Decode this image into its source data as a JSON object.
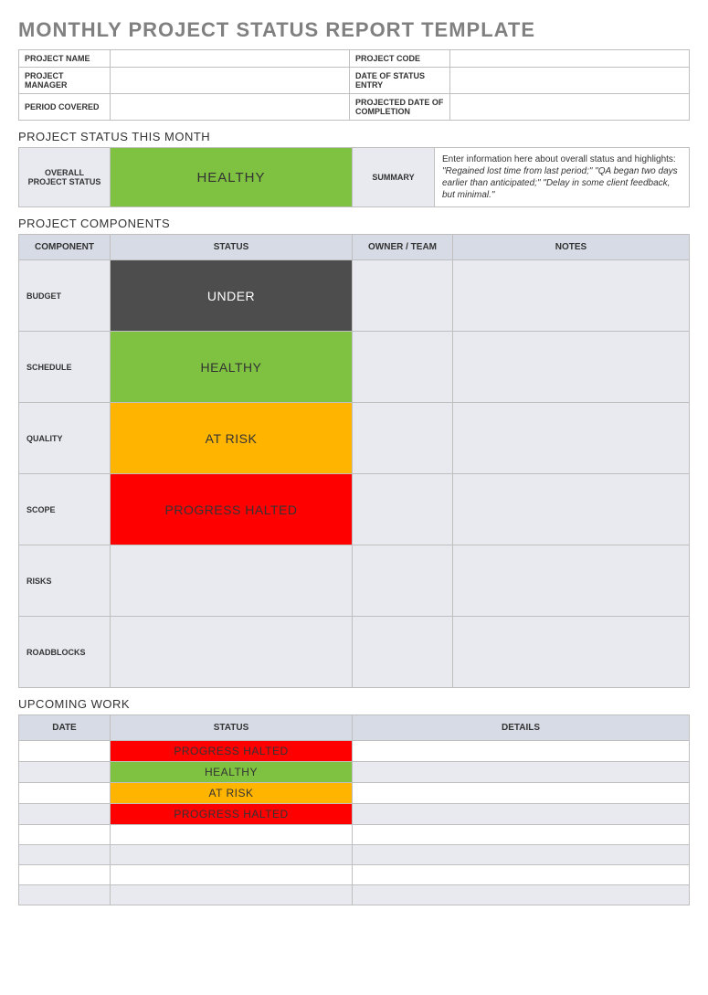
{
  "title": "MONTHLY PROJECT STATUS REPORT TEMPLATE",
  "colors": {
    "healthy": {
      "bg": "#7fc241",
      "fg": "#333333"
    },
    "under": {
      "bg": "#4d4d4d",
      "fg": "#ffffff"
    },
    "atrisk": {
      "bg": "#ffb400",
      "fg": "#333333"
    },
    "halted": {
      "bg": "#ff0000",
      "fg": "#333333"
    },
    "blank": {
      "bg": "#e8eaf0",
      "fg": "#333333"
    }
  },
  "info": {
    "labels": {
      "project_name": "PROJECT NAME",
      "project_code": "PROJECT CODE",
      "project_manager": "PROJECT MANAGER",
      "date_of_entry": "DATE OF STATUS ENTRY",
      "period_covered": "PERIOD COVERED",
      "projected_completion": "PROJECTED DATE OF COMPLETION"
    },
    "values": {
      "project_name": "",
      "project_code": "",
      "project_manager": "",
      "date_of_entry": "",
      "period_covered": "",
      "projected_completion": ""
    }
  },
  "status_month": {
    "heading": "PROJECT STATUS THIS MONTH",
    "overall_label": "OVERALL PROJECT STATUS",
    "overall_status_text": "HEALTHY",
    "overall_status_color": "healthy",
    "summary_label": "SUMMARY",
    "summary_intro": "Enter information here about overall status and highlights: ",
    "summary_example": "\"Regained lost time from last period;\" \"QA began two days earlier than anticipated;\" \"Delay in some client feedback, but minimal.\""
  },
  "components": {
    "heading": "PROJECT COMPONENTS",
    "headers": {
      "component": "COMPONENT",
      "status": "STATUS",
      "owner": "OWNER / TEAM",
      "notes": "NOTES"
    },
    "rows": [
      {
        "label": "BUDGET",
        "status_text": "UNDER",
        "status_color": "under",
        "owner": "",
        "notes": ""
      },
      {
        "label": "SCHEDULE",
        "status_text": "HEALTHY",
        "status_color": "healthy",
        "owner": "",
        "notes": ""
      },
      {
        "label": "QUALITY",
        "status_text": "AT RISK",
        "status_color": "atrisk",
        "owner": "",
        "notes": ""
      },
      {
        "label": "SCOPE",
        "status_text": "PROGRESS HALTED",
        "status_color": "halted",
        "owner": "",
        "notes": ""
      },
      {
        "label": "RISKS",
        "status_text": "",
        "status_color": "blank",
        "owner": "",
        "notes": ""
      },
      {
        "label": "ROADBLOCKS",
        "status_text": "",
        "status_color": "blank",
        "owner": "",
        "notes": ""
      }
    ]
  },
  "upcoming": {
    "heading": "UPCOMING WORK",
    "headers": {
      "date": "DATE",
      "status": "STATUS",
      "details": "DETAILS"
    },
    "rows": [
      {
        "date": "",
        "status_text": "PROGRESS HALTED",
        "status_color": "halted",
        "details": "",
        "alt": true
      },
      {
        "date": "",
        "status_text": "HEALTHY",
        "status_color": "healthy",
        "details": "",
        "alt": false
      },
      {
        "date": "",
        "status_text": "AT RISK",
        "status_color": "atrisk",
        "details": "",
        "alt": true
      },
      {
        "date": "",
        "status_text": "PROGRESS HALTED",
        "status_color": "halted",
        "details": "",
        "alt": false
      },
      {
        "date": "",
        "status_text": "",
        "status_color": null,
        "details": "",
        "alt": true
      },
      {
        "date": "",
        "status_text": "",
        "status_color": null,
        "details": "",
        "alt": false
      },
      {
        "date": "",
        "status_text": "",
        "status_color": null,
        "details": "",
        "alt": true
      },
      {
        "date": "",
        "status_text": "",
        "status_color": null,
        "details": "",
        "alt": false
      }
    ]
  }
}
